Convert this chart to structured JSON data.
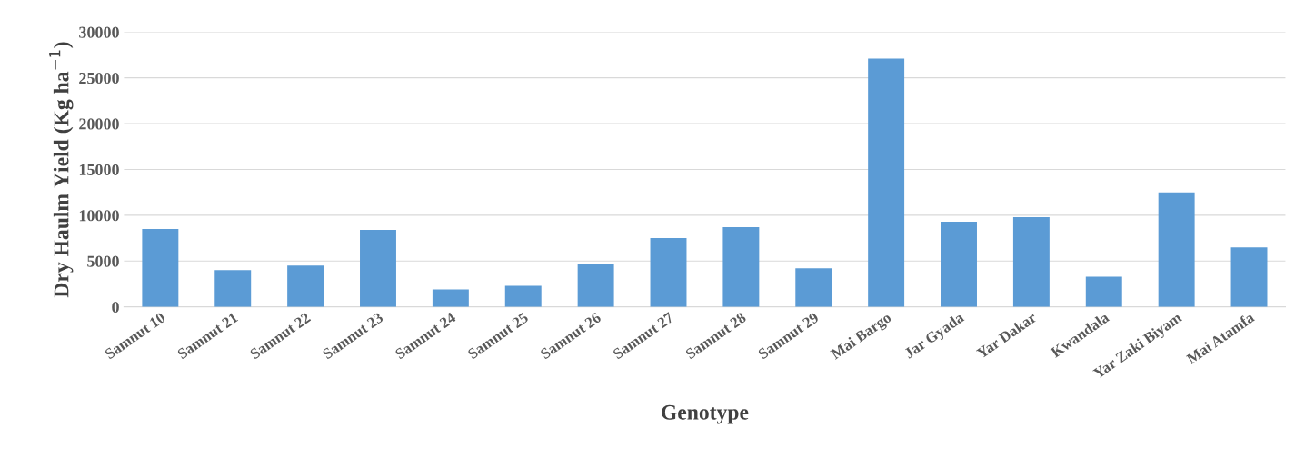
{
  "chart_data": {
    "type": "bar",
    "xlabel": "Genotype",
    "ylabel": "Dry Haulm Yield (Kg ha$^{−1}$)",
    "categories": [
      "Samnut 10",
      "Samnut 21",
      "Samnut 22",
      "Samnut 23",
      "Samnut 24",
      "Samnut 25",
      "Samnut 26",
      "Samnut 27",
      "Samnut 28",
      "Samnut 29",
      "Mai Bargo",
      "Jar Gyada",
      "Yar Dakar",
      "Kwandala",
      "Yar Zaki Biyam",
      "Mai Atamfa"
    ],
    "values": [
      8500,
      4000,
      4500,
      8400,
      1900,
      2300,
      4700,
      7500,
      8700,
      4200,
      27100,
      9300,
      9800,
      3300,
      12500,
      6500
    ],
    "color": "#5b9bd5",
    "ylim": [
      0,
      30000
    ],
    "yticks": [
      0,
      5000,
      10000,
      15000,
      20000,
      25000,
      30000
    ],
    "grid": "y"
  }
}
